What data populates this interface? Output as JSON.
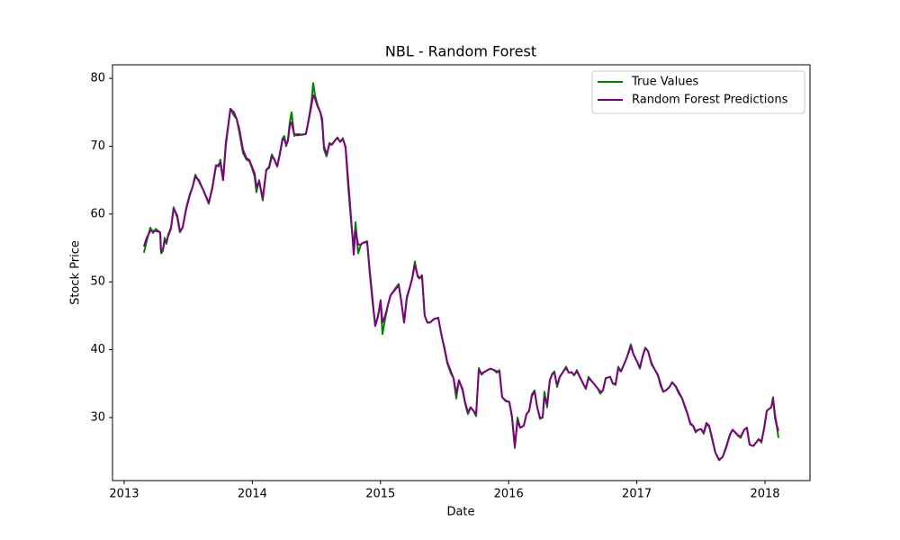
{
  "chart_data": {
    "type": "line",
    "title": "NBL - Random Forest",
    "x_label": "Date",
    "y_label": "Stock Price",
    "x": [
      2013.154,
      2013.176,
      2013.204,
      2013.225,
      2013.246,
      2013.267,
      2013.281,
      2013.288,
      2013.302,
      2013.316,
      2013.33,
      2013.344,
      2013.365,
      2013.386,
      2013.414,
      2013.435,
      2013.456,
      2013.485,
      2013.513,
      2013.534,
      2013.555,
      2013.583,
      2013.618,
      2013.66,
      2013.688,
      2013.716,
      2013.737,
      2013.751,
      2013.772,
      2013.793,
      2013.829,
      2013.857,
      2013.878,
      2013.899,
      2013.927,
      2013.955,
      2013.976,
      2013.997,
      2014.018,
      2014.032,
      2014.053,
      2014.081,
      2014.109,
      2014.131,
      2014.152,
      2014.173,
      2014.194,
      2014.215,
      2014.236,
      2014.25,
      2014.264,
      2014.278,
      2014.292,
      2014.306,
      2014.327,
      2014.348,
      2014.39,
      2014.418,
      2014.44,
      2014.461,
      2014.475,
      2014.489,
      2014.51,
      2014.531,
      2014.545,
      2014.559,
      2014.58,
      2014.601,
      2014.622,
      2014.643,
      2014.664,
      2014.685,
      2014.706,
      2014.727,
      2014.748,
      2014.77,
      2014.791,
      2014.805,
      2014.826,
      2014.847,
      2014.868,
      2014.896,
      2014.917,
      2014.938,
      2014.959,
      2014.98,
      2015.001,
      2015.015,
      2015.036,
      2015.057,
      2015.078,
      2015.1,
      2015.121,
      2015.142,
      2015.163,
      2015.184,
      2015.205,
      2015.226,
      2015.247,
      2015.268,
      2015.289,
      2015.303,
      2015.324,
      2015.345,
      2015.366,
      2015.387,
      2015.416,
      2015.451,
      2015.472,
      2015.5,
      2015.521,
      2015.549,
      2015.57,
      2015.591,
      2015.612,
      2015.64,
      2015.661,
      2015.682,
      2015.703,
      2015.725,
      2015.746,
      2015.767,
      2015.788,
      2015.809,
      2015.837,
      2015.858,
      2015.886,
      2015.907,
      2015.928,
      2015.949,
      2015.977,
      2016.005,
      2016.026,
      2016.048,
      2016.069,
      2016.09,
      2016.118,
      2016.139,
      2016.16,
      2016.181,
      2016.202,
      2016.223,
      2016.244,
      2016.265,
      2016.279,
      2016.3,
      2016.321,
      2016.342,
      2016.357,
      2016.378,
      2016.399,
      2016.427,
      2016.448,
      2016.469,
      2016.49,
      2016.511,
      2016.532,
      2016.56,
      2016.581,
      2016.602,
      2016.623,
      2016.651,
      2016.673,
      2016.694,
      2016.715,
      2016.736,
      2016.757,
      2016.792,
      2016.813,
      2016.834,
      2016.855,
      2016.876,
      2016.904,
      2016.925,
      2016.953,
      2016.974,
      2017.003,
      2017.024,
      2017.045,
      2017.066,
      2017.087,
      2017.115,
      2017.136,
      2017.164,
      2017.185,
      2017.206,
      2017.227,
      2017.255,
      2017.276,
      2017.304,
      2017.326,
      2017.354,
      2017.375,
      2017.396,
      2017.417,
      2017.438,
      2017.459,
      2017.48,
      2017.501,
      2017.522,
      2017.543,
      2017.564,
      2017.585,
      2017.613,
      2017.642,
      2017.67,
      2017.698,
      2017.726,
      2017.747,
      2017.768,
      2017.789,
      2017.81,
      2017.838,
      2017.859,
      2017.88,
      2017.909,
      2017.93,
      2017.951,
      2017.972,
      2017.993,
      2018.014,
      2018.035,
      2018.049,
      2018.063,
      2018.077,
      2018.091,
      2018.105
    ],
    "series": [
      {
        "name": "True Values",
        "color": "#008000",
        "values": [
          54.3,
          56,
          58,
          57.2,
          57.8,
          57.5,
          57.3,
          54.2,
          54.5,
          56.5,
          55.6,
          57,
          58,
          61,
          59.5,
          57.3,
          58,
          61,
          63,
          64,
          65.8,
          64.8,
          63.5,
          61.5,
          64,
          67.2,
          67,
          68,
          65,
          70,
          75.5,
          74.5,
          74,
          72,
          69,
          68,
          67.8,
          66.8,
          65.5,
          63.2,
          65,
          62,
          66.5,
          67,
          68.8,
          68,
          67,
          69,
          71.2,
          71.5,
          70,
          71,
          73.5,
          75,
          71.5,
          71.8,
          71.7,
          71.8,
          74,
          76.5,
          79.3,
          77.5,
          76,
          75,
          73.5,
          69.5,
          68.5,
          70.5,
          70.2,
          70.8,
          71.3,
          70.6,
          71.2,
          69.8,
          64,
          59,
          55,
          58.8,
          54.2,
          55.5,
          55.8,
          56,
          51,
          47,
          43.5,
          45,
          47,
          42.3,
          44.5,
          46.5,
          48,
          48.6,
          49.2,
          49.7,
          47,
          44,
          47.5,
          49,
          50.5,
          53,
          50.8,
          50.5,
          51,
          45,
          44,
          44,
          44.5,
          44.7,
          42.5,
          40,
          38,
          36.5,
          35.8,
          32.8,
          35.5,
          34,
          32,
          30.5,
          31.5,
          31,
          30.2,
          37.3,
          36.3,
          36.7,
          37,
          37.2,
          37,
          36.6,
          37,
          33,
          32.4,
          32.3,
          30,
          25.5,
          30,
          28.5,
          28.8,
          30.5,
          31,
          33.4,
          34,
          31.5,
          29.8,
          30,
          33.8,
          31.5,
          35.5,
          36.5,
          36.8,
          34.5,
          36,
          36.8,
          37.5,
          36.6,
          36.7,
          36.2,
          37,
          35.8,
          35,
          34.2,
          36,
          35.3,
          34.8,
          34.3,
          33.5,
          34,
          35.8,
          36,
          35,
          34.8,
          37.5,
          36.8,
          38,
          39,
          40.8,
          39.3,
          38.2,
          37.2,
          39,
          40.3,
          39.8,
          37.8,
          37.2,
          36.2,
          34.7,
          33.8,
          34,
          34.5,
          35.2,
          34.5,
          33.6,
          32.8,
          31.5,
          30.5,
          29,
          28.8,
          27.8,
          28.2,
          28.3,
          27.6,
          29,
          28.7,
          27,
          24.8,
          23.7,
          24.2,
          25.8,
          27.5,
          28.2,
          27.8,
          27.3,
          27,
          28.2,
          28.5,
          26,
          25.8,
          26.3,
          26.8,
          26.3,
          28.5,
          31,
          31.3,
          31.5,
          33,
          30,
          28.8,
          27
        ]
      },
      {
        "name": "Random Forest Predictions",
        "color": "#800080",
        "values": [
          55.2,
          56.5,
          57.5,
          57.5,
          57.5,
          57.4,
          57.3,
          54.5,
          54.8,
          56,
          56,
          56.8,
          57.8,
          60.8,
          59.8,
          57.5,
          58,
          60.8,
          62.8,
          64,
          65.5,
          65,
          63.5,
          61.7,
          63.8,
          67,
          67.3,
          67.5,
          65,
          70.5,
          75.5,
          75,
          74,
          72.5,
          69.5,
          68.2,
          68,
          67,
          66,
          64,
          64.8,
          62.3,
          66.5,
          66.8,
          68.5,
          68,
          67,
          68.8,
          71,
          71,
          70.2,
          70.8,
          73,
          73.5,
          71.8,
          71.6,
          71.7,
          71.8,
          73.8,
          76,
          77.5,
          77,
          75.8,
          75,
          74,
          70,
          68.8,
          70.2,
          70.3,
          70.8,
          71.2,
          70.7,
          71,
          70,
          65,
          59.5,
          54,
          57.5,
          55.5,
          55.5,
          55.8,
          55.8,
          51.5,
          47.5,
          43.5,
          44.8,
          47.3,
          44,
          45,
          46.5,
          48,
          48.5,
          49,
          49.5,
          47,
          44,
          47.8,
          49,
          50.5,
          52.5,
          51,
          50.5,
          50.8,
          45,
          44,
          44,
          44.5,
          44.7,
          42.5,
          40.2,
          38.2,
          36.8,
          35.8,
          33.5,
          35.5,
          34.2,
          32.2,
          30.8,
          31.5,
          31,
          30.5,
          37,
          36.5,
          36.7,
          37,
          37.2,
          37,
          36.8,
          36.8,
          33,
          32.5,
          32.3,
          30.2,
          25.8,
          29.5,
          28.5,
          28.8,
          30.5,
          31,
          33.2,
          33.8,
          31.5,
          30,
          30,
          33,
          32,
          35.5,
          36.5,
          36.5,
          34.8,
          36,
          36.8,
          37.3,
          36.6,
          36.7,
          36.3,
          36.8,
          35.8,
          35,
          34.3,
          35.8,
          35.3,
          34.8,
          34.3,
          33.8,
          34,
          35.8,
          36,
          35,
          35,
          37.2,
          36.8,
          38,
          39,
          40.5,
          39.3,
          38.2,
          37.4,
          39,
          40.2,
          39.8,
          38,
          37.2,
          36.3,
          35,
          33.8,
          34,
          34.5,
          35.2,
          34.6,
          33.8,
          32.8,
          31.7,
          30.5,
          29.2,
          28.8,
          28,
          28.2,
          28.3,
          27.8,
          29.2,
          28.8,
          27.2,
          24.8,
          23.8,
          24.2,
          25.6,
          27.4,
          28.2,
          27.8,
          27.4,
          27.2,
          28.2,
          28.5,
          26,
          25.8,
          26.3,
          26.8,
          26.5,
          28.3,
          31,
          31.3,
          31.5,
          32.8,
          30.5,
          29,
          28
        ]
      }
    ],
    "xlim": [
      2012.909,
      2018.351
    ],
    "xticks": [
      2013,
      2014,
      2015,
      2016,
      2017,
      2018
    ],
    "ylim": [
      20.7,
      82
    ],
    "yticks": [
      30,
      40,
      50,
      60,
      70,
      80
    ],
    "grid": false,
    "legend": "upper right"
  }
}
